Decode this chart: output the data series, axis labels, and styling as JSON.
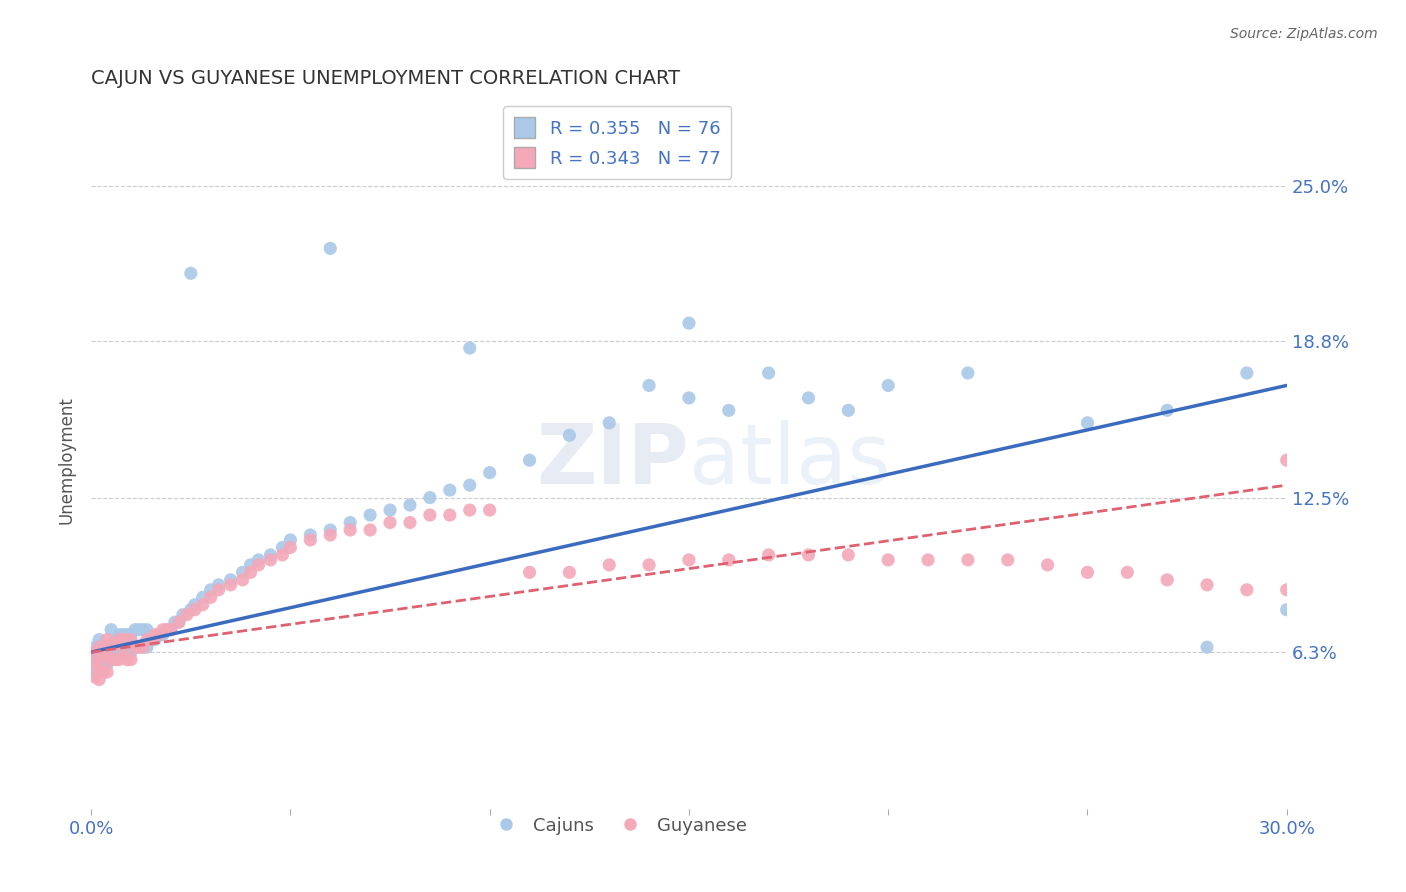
{
  "title": "CAJUN VS GUYANESE UNEMPLOYMENT CORRELATION CHART",
  "source": "Source: ZipAtlas.com",
  "ylabel": "Unemployment",
  "xlim": [
    0.0,
    0.3
  ],
  "ylim": [
    0.0,
    0.28
  ],
  "xtick_positions": [
    0.0,
    0.05,
    0.1,
    0.15,
    0.2,
    0.25,
    0.3
  ],
  "xticklabels": [
    "0.0%",
    "",
    "",
    "",
    "",
    "",
    "30.0%"
  ],
  "ytick_positions": [
    0.063,
    0.125,
    0.188,
    0.25
  ],
  "ytick_labels": [
    "6.3%",
    "12.5%",
    "18.8%",
    "25.0%"
  ],
  "grid_color": "#cccccc",
  "background_color": "#ffffff",
  "cajun_color": "#aac8e8",
  "guyanese_color": "#f4a8b8",
  "cajun_line_color": "#3a6bbf",
  "guyanese_line_color": "#e06070",
  "title_color": "#333333",
  "axis_label_color": "#4472c4",
  "source_color": "#666666",
  "ylabel_color": "#555555",
  "legend_R_cajun": "R = 0.355",
  "legend_N_cajun": "N = 76",
  "legend_R_guyanese": "R = 0.343",
  "legend_N_guyanese": "N = 77",
  "watermark_text": "ZIPatlas",
  "cajun_label": "Cajuns",
  "guyanese_label": "Guyanese",
  "cajun_line_x": [
    0.0,
    0.3
  ],
  "cajun_line_y": [
    0.063,
    0.17
  ],
  "guyanese_line_x": [
    0.0,
    0.3
  ],
  "guyanese_line_y": [
    0.063,
    0.13
  ],
  "cajun_x": [
    0.001,
    0.001,
    0.001,
    0.002,
    0.002,
    0.002,
    0.003,
    0.003,
    0.004,
    0.004,
    0.005,
    0.005,
    0.005,
    0.006,
    0.006,
    0.007,
    0.007,
    0.008,
    0.008,
    0.009,
    0.009,
    0.01,
    0.01,
    0.011,
    0.011,
    0.012,
    0.012,
    0.013,
    0.013,
    0.014,
    0.014,
    0.015,
    0.016,
    0.017,
    0.018,
    0.019,
    0.02,
    0.021,
    0.022,
    0.023,
    0.025,
    0.026,
    0.028,
    0.03,
    0.032,
    0.035,
    0.038,
    0.04,
    0.042,
    0.045,
    0.048,
    0.05,
    0.055,
    0.06,
    0.065,
    0.07,
    0.075,
    0.08,
    0.085,
    0.09,
    0.095,
    0.1,
    0.11,
    0.12,
    0.13,
    0.14,
    0.15,
    0.16,
    0.17,
    0.18,
    0.2,
    0.22,
    0.25,
    0.27,
    0.29,
    0.3
  ],
  "cajun_y": [
    0.055,
    0.06,
    0.065,
    0.055,
    0.062,
    0.068,
    0.058,
    0.065,
    0.058,
    0.065,
    0.06,
    0.065,
    0.072,
    0.062,
    0.068,
    0.063,
    0.07,
    0.063,
    0.07,
    0.063,
    0.07,
    0.063,
    0.07,
    0.065,
    0.072,
    0.065,
    0.072,
    0.065,
    0.072,
    0.065,
    0.072,
    0.068,
    0.068,
    0.07,
    0.07,
    0.072,
    0.072,
    0.075,
    0.075,
    0.078,
    0.08,
    0.082,
    0.085,
    0.088,
    0.09,
    0.092,
    0.095,
    0.098,
    0.1,
    0.102,
    0.105,
    0.108,
    0.11,
    0.112,
    0.115,
    0.118,
    0.12,
    0.122,
    0.125,
    0.128,
    0.13,
    0.135,
    0.14,
    0.15,
    0.155,
    0.17,
    0.165,
    0.16,
    0.175,
    0.165,
    0.17,
    0.175,
    0.155,
    0.16,
    0.175,
    0.08
  ],
  "cajun_outliers_x": [
    0.025,
    0.06,
    0.095,
    0.15,
    0.19,
    0.28
  ],
  "cajun_outliers_y": [
    0.215,
    0.225,
    0.185,
    0.195,
    0.16,
    0.065
  ],
  "guyanese_x": [
    0.001,
    0.001,
    0.001,
    0.002,
    0.002,
    0.002,
    0.003,
    0.003,
    0.004,
    0.004,
    0.004,
    0.005,
    0.005,
    0.006,
    0.006,
    0.007,
    0.007,
    0.008,
    0.008,
    0.009,
    0.009,
    0.01,
    0.01,
    0.011,
    0.012,
    0.013,
    0.014,
    0.015,
    0.016,
    0.017,
    0.018,
    0.019,
    0.02,
    0.022,
    0.024,
    0.026,
    0.028,
    0.03,
    0.032,
    0.035,
    0.038,
    0.04,
    0.042,
    0.045,
    0.048,
    0.05,
    0.055,
    0.06,
    0.065,
    0.07,
    0.075,
    0.08,
    0.085,
    0.09,
    0.095,
    0.1,
    0.11,
    0.12,
    0.13,
    0.14,
    0.15,
    0.16,
    0.17,
    0.18,
    0.19,
    0.2,
    0.21,
    0.22,
    0.23,
    0.24,
    0.25,
    0.26,
    0.27,
    0.28,
    0.29,
    0.3,
    0.3
  ],
  "guyanese_y": [
    0.053,
    0.058,
    0.063,
    0.052,
    0.058,
    0.065,
    0.055,
    0.062,
    0.055,
    0.062,
    0.068,
    0.06,
    0.066,
    0.06,
    0.066,
    0.06,
    0.068,
    0.062,
    0.068,
    0.06,
    0.068,
    0.06,
    0.068,
    0.065,
    0.065,
    0.065,
    0.068,
    0.068,
    0.07,
    0.07,
    0.072,
    0.072,
    0.072,
    0.075,
    0.078,
    0.08,
    0.082,
    0.085,
    0.088,
    0.09,
    0.092,
    0.095,
    0.098,
    0.1,
    0.102,
    0.105,
    0.108,
    0.11,
    0.112,
    0.112,
    0.115,
    0.115,
    0.118,
    0.118,
    0.12,
    0.12,
    0.095,
    0.095,
    0.098,
    0.098,
    0.1,
    0.1,
    0.102,
    0.102,
    0.102,
    0.1,
    0.1,
    0.1,
    0.1,
    0.098,
    0.095,
    0.095,
    0.092,
    0.09,
    0.088,
    0.088,
    0.14
  ]
}
